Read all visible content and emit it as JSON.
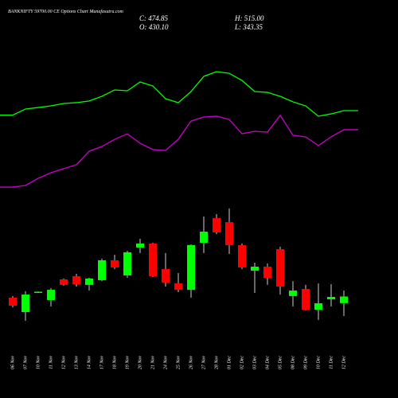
{
  "header": {
    "title": "BANKNIFTY 59700.00 CE Options Chart Munafasutra.com",
    "close": "C: 474.85",
    "high": "H: 515.00",
    "open": "O: 430.10",
    "low": "L: 343.35"
  },
  "chart_data": {
    "type": "candlestick",
    "categories": [
      "06 Nov",
      "07 Nov",
      "10 Nov",
      "11 Nov",
      "12 Nov",
      "13 Nov",
      "14 Nov",
      "17 Nov",
      "18 Nov",
      "19 Nov",
      "20 Nov",
      "21 Nov",
      "24 Nov",
      "25 Nov",
      "26 Nov",
      "27 Nov",
      "28 Nov",
      "01 Dec",
      "02 Dec",
      "03 Dec",
      "04 Dec",
      "05 Dec",
      "08 Dec",
      "09 Dec",
      "10 Dec",
      "11 Dec",
      "12 Dec"
    ],
    "open": [
      467,
      370,
      501,
      451,
      590,
      612,
      553,
      585,
      719,
      617,
      805,
      832,
      660,
      563,
      520,
      837,
      1003,
      976,
      821,
      649,
      676,
      794,
      478,
      526,
      386,
      456,
      430.1
    ],
    "high": [
      478,
      510,
      510,
      531,
      596,
      628,
      601,
      730,
      756,
      783,
      864,
      837,
      767,
      633,
      826,
      1014,
      1030,
      1068,
      832,
      703,
      697,
      810,
      579,
      553,
      563,
      558,
      515.0
    ],
    "low": [
      402,
      311,
      499,
      408,
      547,
      542,
      515,
      579,
      660,
      601,
      767,
      606,
      542,
      504,
      467,
      767,
      896,
      762,
      660,
      499,
      553,
      488,
      408,
      381,
      317,
      408,
      343.35
    ],
    "close": [
      413,
      488,
      507,
      520,
      553,
      558,
      596,
      719,
      671,
      773,
      832,
      612,
      569,
      520,
      821,
      912,
      907,
      821,
      671,
      676,
      601,
      542,
      515,
      386,
      429,
      472,
      474.85
    ],
    "up_color": "#00ff00",
    "down_color": "#ff0000",
    "ylim": [
      220,
      1132
    ],
    "indicators": {
      "ylim": [
        0,
        100
      ],
      "series": [
        {
          "color": "#00ff00",
          "values": [
            62,
            66.5,
            67.6,
            68.8,
            70.6,
            71.2,
            72.4,
            75.9,
            80.6,
            80,
            86.5,
            83.5,
            74.1,
            71.2,
            79.4,
            90.6,
            94.1,
            92.9,
            87.6,
            79.4,
            78.8,
            75.9,
            71.8,
            68.8,
            61.2,
            62.9,
            65.3
          ]
        },
        {
          "color": "#cc00cc",
          "values": [
            8.8,
            10,
            15.3,
            19.4,
            22.4,
            25.3,
            35.3,
            38.8,
            44.1,
            48.2,
            41.2,
            36.5,
            35.9,
            44.1,
            57.6,
            60.6,
            61.2,
            58.8,
            48.2,
            50,
            49.4,
            61.8,
            47.1,
            45.9,
            39.4,
            45.9,
            51.2
          ]
        }
      ]
    }
  }
}
